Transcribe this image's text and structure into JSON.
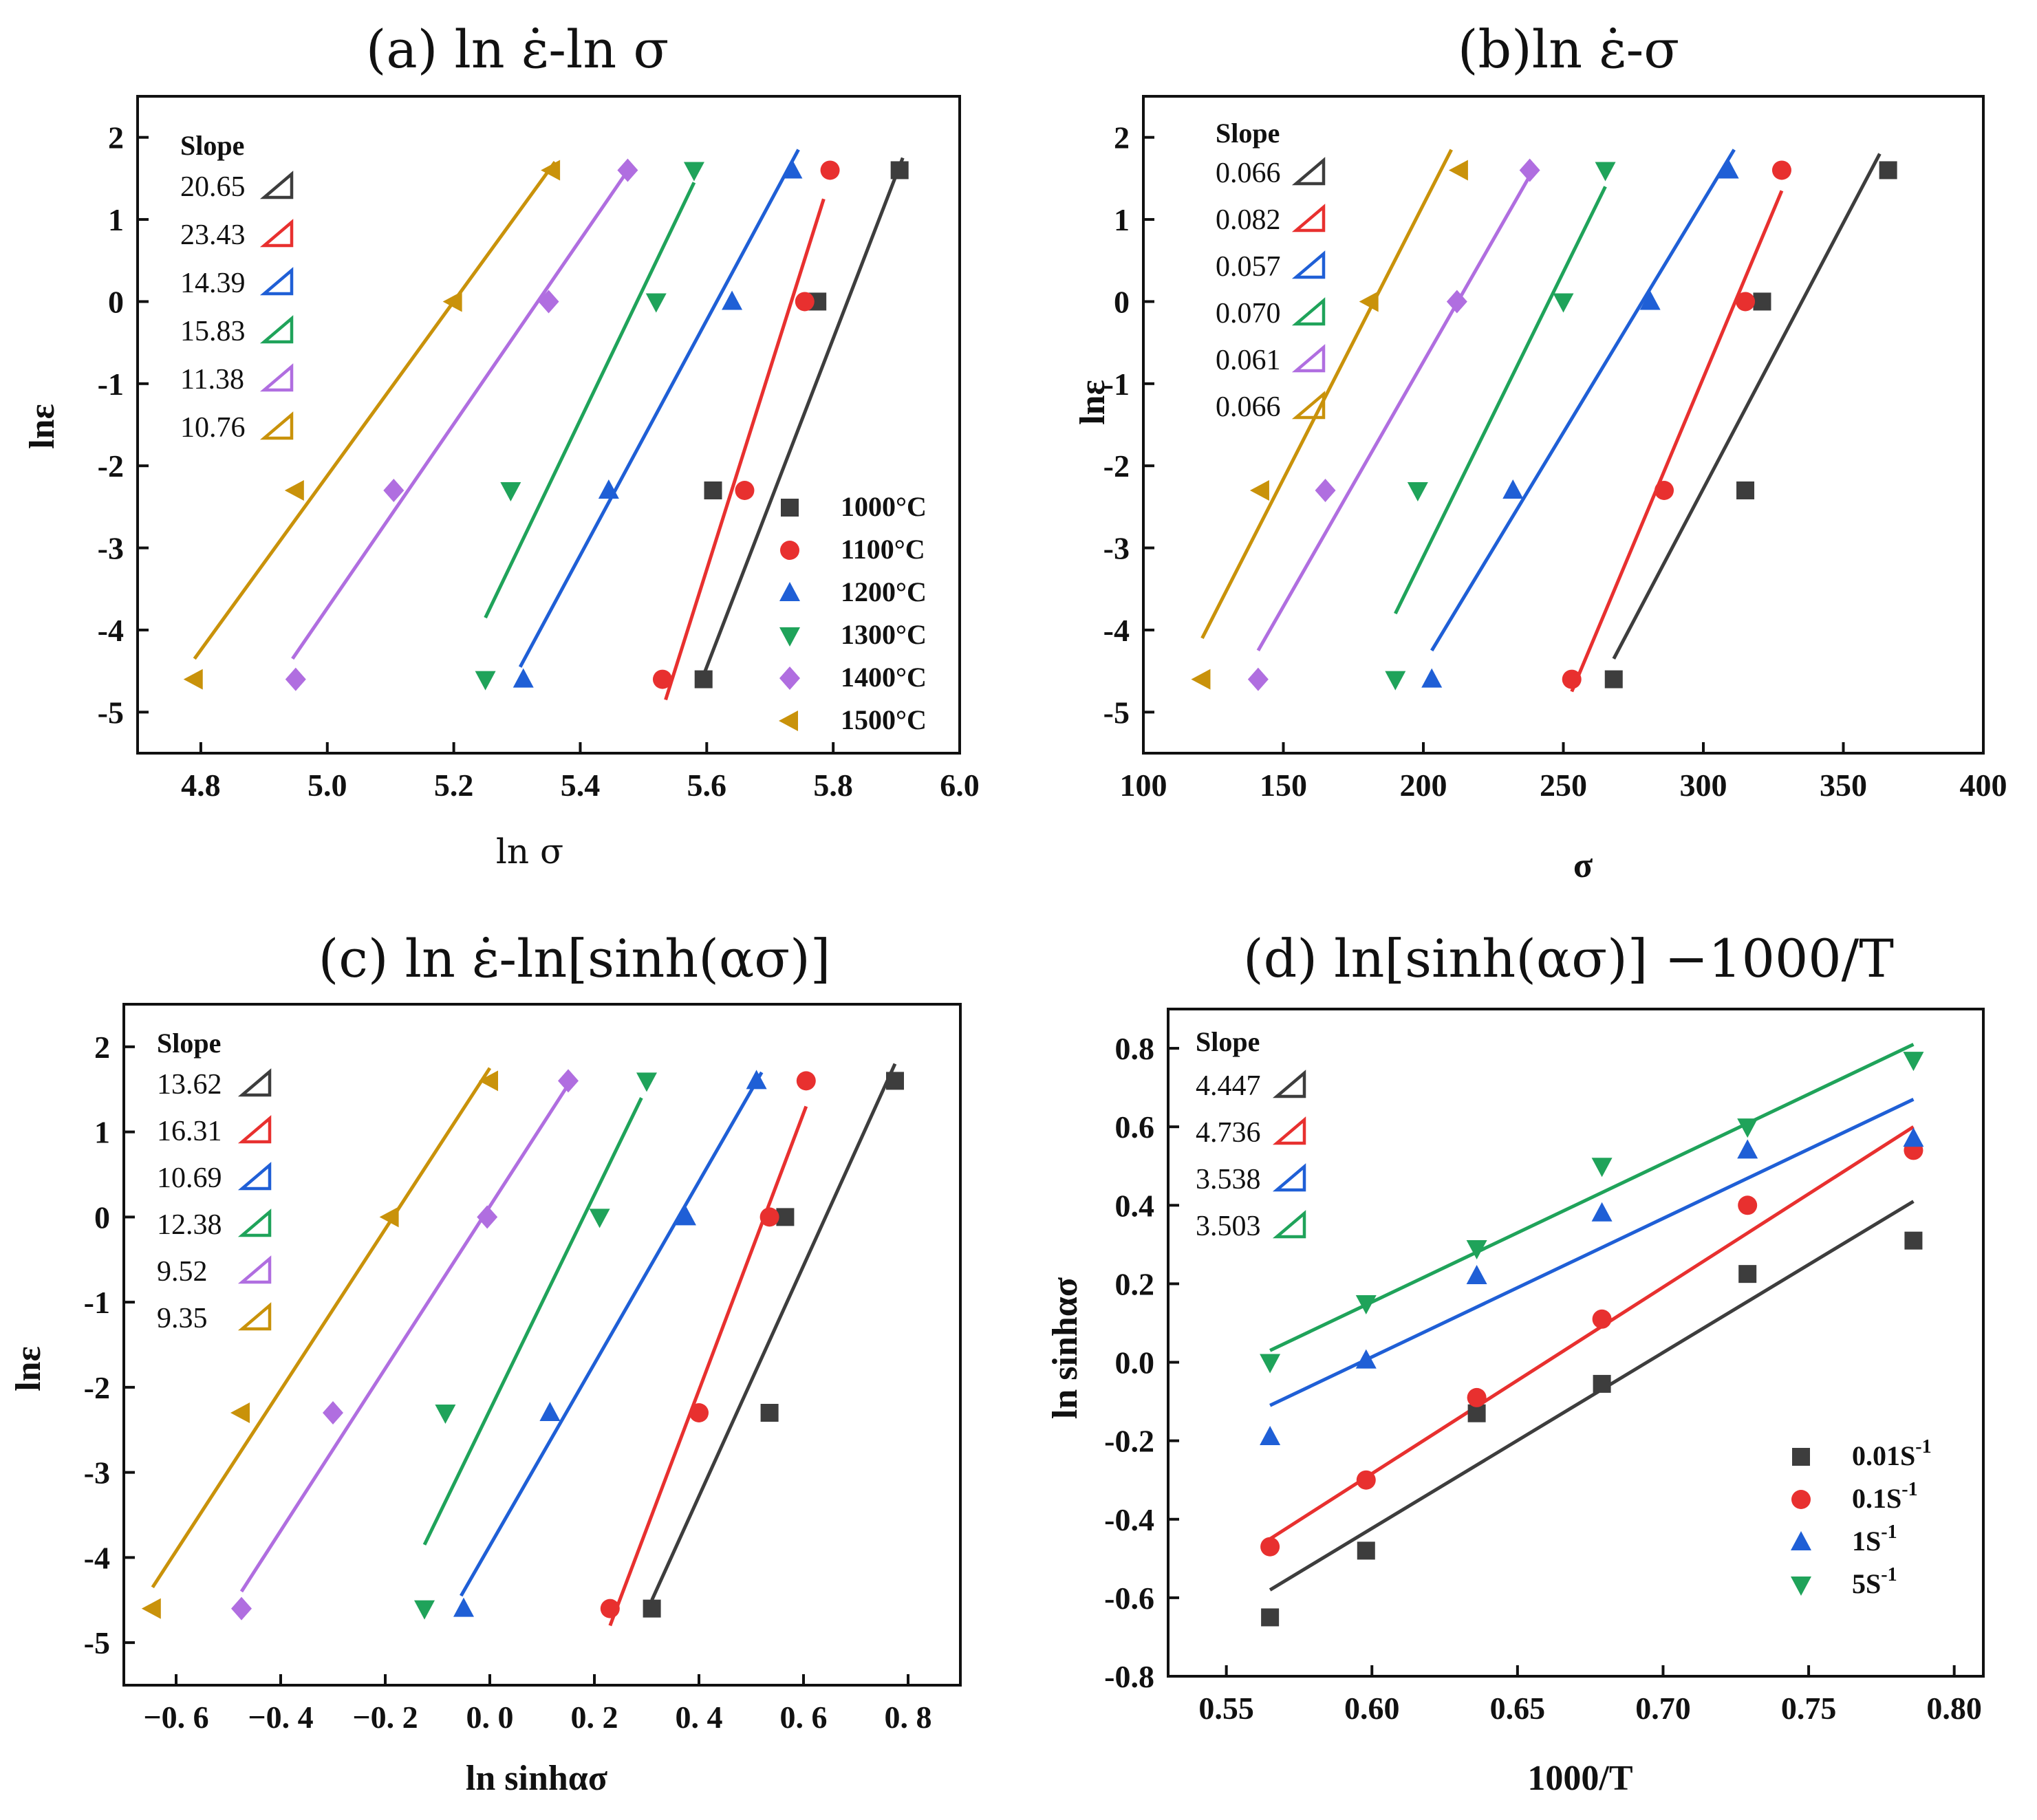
{
  "chart_data": [
    {
      "id": "a",
      "type": "scatter",
      "title": "(a) ln ε̇-ln σ",
      "xlabel": "ln σ",
      "ylabel": "lnε",
      "xlim": [
        4.7,
        6.0
      ],
      "ylim": [
        -5.5,
        2.5
      ],
      "xticks": [
        4.8,
        5.0,
        5.2,
        5.4,
        5.6,
        5.8,
        6.0
      ],
      "xtick_labels": [
        "4.8",
        "5.0",
        "5.2",
        "5.4",
        "5.6",
        "5.8",
        "6.0"
      ],
      "yticks": [
        -5,
        -4,
        -3,
        -2,
        -1,
        0,
        1,
        2
      ],
      "ytick_labels": [
        "-5",
        "-4",
        "-3",
        "-2",
        "-1",
        "0",
        "1",
        "2"
      ],
      "slope_title": "Slope",
      "slopes": [
        "20.65",
        "23.43",
        "14.39",
        "15.83",
        "11.38",
        "10.76"
      ],
      "legend_position": "bottom-right",
      "legend": [
        "1000°C",
        "1100°C",
        "1200°C",
        "1300°C",
        "1400°C",
        "1500°C"
      ],
      "series": [
        {
          "name": "1000°C",
          "color": "#3d3d3d",
          "marker": "square",
          "x": [
            5.595,
            5.61,
            5.775,
            5.905
          ],
          "y": [
            -4.6,
            -2.3,
            0,
            1.6
          ],
          "fit": [
            [
              5.595,
              -4.55
            ],
            [
              5.91,
              1.75
            ]
          ]
        },
        {
          "name": "1100°C",
          "color": "#e8302f",
          "marker": "circle",
          "x": [
            5.53,
            5.66,
            5.755,
            5.795
          ],
          "y": [
            -4.6,
            -2.3,
            0,
            1.6
          ],
          "fit": [
            [
              5.535,
              -4.85
            ],
            [
              5.785,
              1.25
            ]
          ]
        },
        {
          "name": "1200°C",
          "color": "#1f5fd6",
          "marker": "triangle-up",
          "x": [
            5.31,
            5.445,
            5.64,
            5.735
          ],
          "y": [
            -4.6,
            -2.3,
            0,
            1.6
          ],
          "fit": [
            [
              5.305,
              -4.45
            ],
            [
              5.745,
              1.85
            ]
          ]
        },
        {
          "name": "1300°C",
          "color": "#1fa35a",
          "marker": "triangle-down",
          "x": [
            5.25,
            5.29,
            5.52,
            5.58
          ],
          "y": [
            -4.6,
            -2.3,
            0,
            1.6
          ],
          "fit": [
            [
              5.25,
              -3.85
            ],
            [
              5.58,
              1.45
            ]
          ]
        },
        {
          "name": "1400°C",
          "color": "#b06ee0",
          "marker": "diamond",
          "x": [
            4.95,
            5.105,
            5.35,
            5.475
          ],
          "y": [
            -4.6,
            -2.3,
            0,
            1.6
          ],
          "fit": [
            [
              4.945,
              -4.35
            ],
            [
              5.48,
              1.65
            ]
          ]
        },
        {
          "name": "1500°C",
          "color": "#c9920a",
          "marker": "triangle-left",
          "x": [
            4.79,
            4.95,
            5.2,
            5.355
          ],
          "y": [
            -4.6,
            -2.3,
            0,
            1.6
          ],
          "fit": [
            [
              4.79,
              -4.35
            ],
            [
              5.36,
              1.7
            ]
          ]
        }
      ]
    },
    {
      "id": "b",
      "type": "scatter",
      "title": "(b)ln ε̇-σ",
      "xlabel": "σ",
      "ylabel": "lnε",
      "xlim": [
        100,
        400
      ],
      "ylim": [
        -5.5,
        2.5
      ],
      "xticks": [
        100,
        150,
        200,
        250,
        300,
        350,
        400
      ],
      "xtick_labels": [
        "100",
        "150",
        "200",
        "250",
        "300",
        "350",
        "400"
      ],
      "yticks": [
        -5,
        -4,
        -3,
        -2,
        -1,
        0,
        1,
        2
      ],
      "ytick_labels": [
        "-5",
        "-4",
        "-3",
        "-2",
        "-1",
        "0",
        "1",
        "2"
      ],
      "slope_title": "Slope",
      "slopes": [
        "0.066",
        "0.082",
        "0.057",
        "0.070",
        "0.061",
        "0.066"
      ],
      "series": [
        {
          "name": "1000°C",
          "color": "#3d3d3d",
          "marker": "square",
          "x": [
            268,
            315,
            321,
            366
          ],
          "y": [
            -4.6,
            -2.3,
            0,
            1.6
          ],
          "fit": [
            [
              268,
              -4.35
            ],
            [
              363,
              1.8
            ]
          ]
        },
        {
          "name": "1100°C",
          "color": "#e8302f",
          "marker": "circle",
          "x": [
            253,
            286,
            315,
            328
          ],
          "y": [
            -4.6,
            -2.3,
            0,
            1.6
          ],
          "fit": [
            [
              253,
              -4.75
            ],
            [
              328,
              1.35
            ]
          ]
        },
        {
          "name": "1200°C",
          "color": "#1f5fd6",
          "marker": "triangle-up",
          "x": [
            203,
            232,
            281,
            309
          ],
          "y": [
            -4.6,
            -2.3,
            0,
            1.6
          ],
          "fit": [
            [
              203,
              -4.25
            ],
            [
              311,
              1.85
            ]
          ]
        },
        {
          "name": "1300°C",
          "color": "#1fa35a",
          "marker": "triangle-down",
          "x": [
            190,
            198,
            250,
            265
          ],
          "y": [
            -4.6,
            -2.3,
            0,
            1.6
          ],
          "fit": [
            [
              190,
              -3.8
            ],
            [
              265,
              1.4
            ]
          ]
        },
        {
          "name": "1400°C",
          "color": "#b06ee0",
          "marker": "diamond",
          "x": [
            141,
            165,
            212,
            238
          ],
          "y": [
            -4.6,
            -2.3,
            0,
            1.6
          ],
          "fit": [
            [
              141,
              -4.25
            ],
            [
              240,
              1.65
            ]
          ]
        },
        {
          "name": "1500°C",
          "color": "#c9920a",
          "marker": "triangle-left",
          "x": [
            121,
            142,
            181,
            213
          ],
          "y": [
            -4.6,
            -2.3,
            0,
            1.6
          ],
          "fit": [
            [
              121,
              -4.1
            ],
            [
              210,
              1.85
            ]
          ]
        }
      ]
    },
    {
      "id": "c",
      "type": "scatter",
      "title": "(c) ln ε̇-ln[sinh(ασ)]",
      "xlabel": "ln sinhασ",
      "ylabel": "lnε",
      "xlim": [
        -0.7,
        0.9
      ],
      "ylim": [
        -5.5,
        2.5
      ],
      "xticks": [
        -0.6,
        -0.4,
        -0.2,
        0.0,
        0.2,
        0.4,
        0.6,
        0.8
      ],
      "xtick_labels": [
        "−0. 6",
        "−0. 4",
        "−0. 2",
        "0. 0",
        "0. 2",
        "0. 4",
        "0. 6",
        "0. 8"
      ],
      "yticks": [
        -5,
        -4,
        -3,
        -2,
        -1,
        0,
        1,
        2
      ],
      "ytick_labels": [
        "-5",
        "-4",
        "-3",
        "-2",
        "-1",
        "0",
        "1",
        "2"
      ],
      "slope_title": "Slope",
      "slopes": [
        "13.62",
        "16.31",
        "10.69",
        "12.38",
        "9.52",
        "9.35"
      ],
      "series": [
        {
          "name": "1000°C",
          "color": "#3d3d3d",
          "marker": "square",
          "x": [
            0.31,
            0.535,
            0.565,
            0.775
          ],
          "y": [
            -4.6,
            -2.3,
            0,
            1.6
          ],
          "fit": [
            [
              0.31,
              -4.5
            ],
            [
              0.775,
              1.8
            ]
          ]
        },
        {
          "name": "1100°C",
          "color": "#e8302f",
          "marker": "circle",
          "x": [
            0.23,
            0.4,
            0.535,
            0.605
          ],
          "y": [
            -4.6,
            -2.3,
            0,
            1.6
          ],
          "fit": [
            [
              0.23,
              -4.8
            ],
            [
              0.605,
              1.3
            ]
          ]
        },
        {
          "name": "1200°C",
          "color": "#1f5fd6",
          "marker": "triangle-up",
          "x": [
            -0.05,
            0.115,
            0.375,
            0.51
          ],
          "y": [
            -4.6,
            -2.3,
            0,
            1.6
          ],
          "fit": [
            [
              -0.055,
              -4.45
            ],
            [
              0.52,
              1.7
            ]
          ]
        },
        {
          "name": "1300°C",
          "color": "#1fa35a",
          "marker": "triangle-down",
          "x": [
            -0.125,
            -0.085,
            0.21,
            0.3
          ],
          "y": [
            -4.6,
            -2.3,
            0,
            1.6
          ],
          "fit": [
            [
              -0.125,
              -3.85
            ],
            [
              0.29,
              1.4
            ]
          ]
        },
        {
          "name": "1400°C",
          "color": "#b06ee0",
          "marker": "diamond",
          "x": [
            -0.475,
            -0.3,
            -0.005,
            0.15
          ],
          "y": [
            -4.6,
            -2.3,
            0,
            1.6
          ],
          "fit": [
            [
              -0.475,
              -4.4
            ],
            [
              0.16,
              1.65
            ]
          ]
        },
        {
          "name": "1500°C",
          "color": "#c9920a",
          "marker": "triangle-left",
          "x": [
            -0.645,
            -0.475,
            -0.19,
            0.0
          ],
          "y": [
            -4.6,
            -2.3,
            0,
            1.6
          ],
          "fit": [
            [
              -0.645,
              -4.35
            ],
            [
              0.0,
              1.75
            ]
          ]
        }
      ]
    },
    {
      "id": "d",
      "type": "scatter",
      "title": "(d) ln[sinh(ασ)] −1000/T",
      "xlabel": "1000/T",
      "ylabel": "ln sinhασ",
      "xlim": [
        0.53,
        0.81
      ],
      "ylim": [
        -0.8,
        0.9
      ],
      "xticks": [
        0.55,
        0.6,
        0.65,
        0.7,
        0.75,
        0.8
      ],
      "xtick_labels": [
        "0.55",
        "0.60",
        "0.65",
        "0.70",
        "0.75",
        "0.80"
      ],
      "yticks": [
        -0.8,
        -0.6,
        -0.4,
        -0.2,
        0.0,
        0.2,
        0.4,
        0.6,
        0.8
      ],
      "ytick_labels": [
        "-0.8",
        "-0.6",
        "-0.4",
        "-0.2",
        "0.0",
        "0.2",
        "0.4",
        "0.6",
        "0.8"
      ],
      "slope_title": "Slope",
      "slopes": [
        "4.447",
        "4.736",
        "3.538",
        "3.503"
      ],
      "legend_position": "bottom-right",
      "legend": [
        "0.01S",
        "0.1S",
        "1S",
        "5S"
      ],
      "legend_superscript": "-1",
      "series": [
        {
          "name": "0.01S-1",
          "color": "#3d3d3d",
          "marker": "square",
          "x": [
            0.565,
            0.598,
            0.636,
            0.679,
            0.729,
            0.786
          ],
          "y": [
            -0.65,
            -0.48,
            -0.13,
            -0.055,
            0.225,
            0.31
          ],
          "fit": [
            [
              0.565,
              -0.58
            ],
            [
              0.786,
              0.41
            ]
          ]
        },
        {
          "name": "0.1S-1",
          "color": "#e8302f",
          "marker": "circle",
          "x": [
            0.565,
            0.598,
            0.636,
            0.679,
            0.729,
            0.786
          ],
          "y": [
            -0.47,
            -0.3,
            -0.09,
            0.11,
            0.4,
            0.54
          ],
          "fit": [
            [
              0.565,
              -0.45
            ],
            [
              0.786,
              0.6
            ]
          ]
        },
        {
          "name": "1S-1",
          "color": "#1f5fd6",
          "marker": "triangle-up",
          "x": [
            0.565,
            0.598,
            0.636,
            0.679,
            0.729,
            0.786
          ],
          "y": [
            -0.19,
            0.005,
            0.22,
            0.38,
            0.54,
            0.57
          ],
          "fit": [
            [
              0.565,
              -0.11
            ],
            [
              0.786,
              0.67
            ]
          ]
        },
        {
          "name": "5S-1",
          "color": "#1fa35a",
          "marker": "triangle-down",
          "x": [
            0.565,
            0.598,
            0.636,
            0.679,
            0.729,
            0.786
          ],
          "y": [
            0.0,
            0.15,
            0.29,
            0.5,
            0.6,
            0.77
          ],
          "fit": [
            [
              0.565,
              0.03
            ],
            [
              0.786,
              0.81
            ]
          ]
        }
      ]
    }
  ]
}
